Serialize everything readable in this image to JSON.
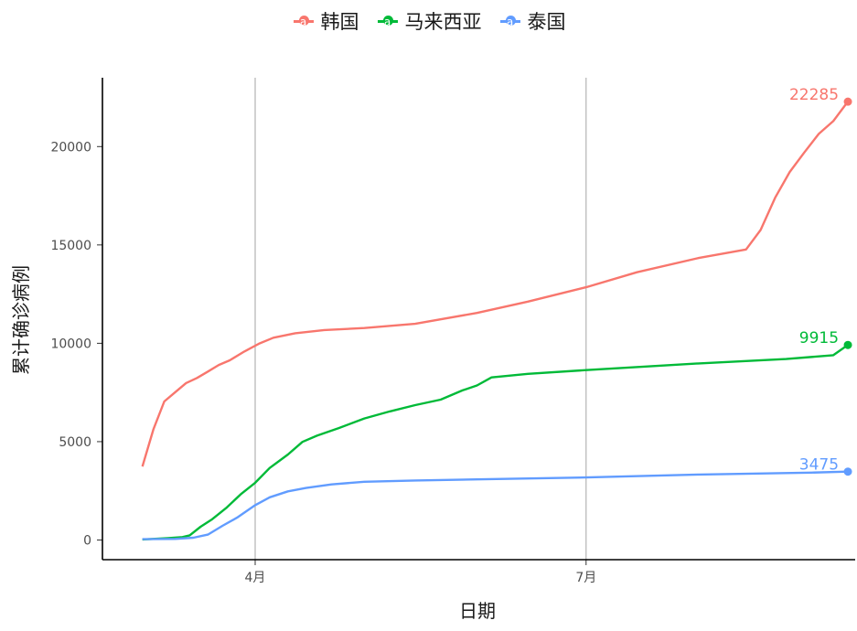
{
  "chart_data": {
    "type": "line",
    "title": "",
    "xlabel": "日期",
    "ylabel": "累计确诊病例",
    "x_ticks": [
      "4月",
      "7月"
    ],
    "y_ticks": [
      "0",
      "5000",
      "10000",
      "15000",
      "20000"
    ],
    "ylim": [
      -1000,
      23500
    ],
    "xlim": [
      "2020-02-19",
      "2020-09-13"
    ],
    "grid": "vertical major only",
    "legend_position": "top",
    "series": [
      {
        "name": "韩国",
        "color": "#F8766D",
        "end_label": "22285",
        "points": [
          [
            "2020-03-01",
            3736
          ],
          [
            "2020-03-04",
            5621
          ],
          [
            "2020-03-07",
            7041
          ],
          [
            "2020-03-10",
            7513
          ],
          [
            "2020-03-13",
            7979
          ],
          [
            "2020-03-16",
            8236
          ],
          [
            "2020-03-19",
            8565
          ],
          [
            "2020-03-22",
            8897
          ],
          [
            "2020-03-25",
            9137
          ],
          [
            "2020-03-29",
            9583
          ],
          [
            "2020-04-02",
            9976
          ],
          [
            "2020-04-06",
            10284
          ],
          [
            "2020-04-12",
            10512
          ],
          [
            "2020-04-20",
            10674
          ],
          [
            "2020-05-01",
            10774
          ],
          [
            "2020-05-15",
            10991
          ],
          [
            "2020-06-01",
            11541
          ],
          [
            "2020-06-15",
            12121
          ],
          [
            "2020-07-01",
            12850
          ],
          [
            "2020-07-15",
            13612
          ],
          [
            "2020-08-01",
            14336
          ],
          [
            "2020-08-14",
            14770
          ],
          [
            "2020-08-18",
            15761
          ],
          [
            "2020-08-22",
            17399
          ],
          [
            "2020-08-26",
            18706
          ],
          [
            "2020-08-30",
            19699
          ],
          [
            "2020-09-03",
            20644
          ],
          [
            "2020-09-07",
            21296
          ],
          [
            "2020-09-11",
            22285
          ]
        ]
      },
      {
        "name": "马来西亚",
        "color": "#00BA38",
        "end_label": "9915",
        "points": [
          [
            "2020-03-01",
            29
          ],
          [
            "2020-03-08",
            99
          ],
          [
            "2020-03-12",
            149
          ],
          [
            "2020-03-14",
            238
          ],
          [
            "2020-03-17",
            673
          ],
          [
            "2020-03-20",
            1030
          ],
          [
            "2020-03-24",
            1624
          ],
          [
            "2020-03-28",
            2320
          ],
          [
            "2020-04-01",
            2908
          ],
          [
            "2020-04-05",
            3662
          ],
          [
            "2020-04-10",
            4346
          ],
          [
            "2020-04-14",
            4987
          ],
          [
            "2020-04-18",
            5305
          ],
          [
            "2020-04-24",
            5691
          ],
          [
            "2020-05-01",
            6176
          ],
          [
            "2020-05-08",
            6535
          ],
          [
            "2020-05-15",
            6855
          ],
          [
            "2020-05-22",
            7137
          ],
          [
            "2020-05-28",
            7604
          ],
          [
            "2020-06-01",
            7857
          ],
          [
            "2020-06-05",
            8266
          ],
          [
            "2020-06-15",
            8445
          ],
          [
            "2020-07-01",
            8639
          ],
          [
            "2020-08-01",
            8976
          ],
          [
            "2020-08-25",
            9200
          ],
          [
            "2020-09-07",
            9397
          ],
          [
            "2020-09-11",
            9915
          ]
        ]
      },
      {
        "name": "泰国",
        "color": "#619CFF",
        "end_label": "3475",
        "points": [
          [
            "2020-03-01",
            42
          ],
          [
            "2020-03-10",
            53
          ],
          [
            "2020-03-15",
            114
          ],
          [
            "2020-03-19",
            272
          ],
          [
            "2020-03-23",
            721
          ],
          [
            "2020-03-27",
            1136
          ],
          [
            "2020-04-01",
            1771
          ],
          [
            "2020-04-05",
            2169
          ],
          [
            "2020-04-10",
            2473
          ],
          [
            "2020-04-15",
            2643
          ],
          [
            "2020-04-22",
            2826
          ],
          [
            "2020-05-01",
            2960
          ],
          [
            "2020-05-15",
            3025
          ],
          [
            "2020-06-01",
            3081
          ],
          [
            "2020-07-01",
            3180
          ],
          [
            "2020-08-01",
            3330
          ],
          [
            "2020-09-01",
            3427
          ],
          [
            "2020-09-11",
            3475
          ]
        ]
      }
    ]
  }
}
